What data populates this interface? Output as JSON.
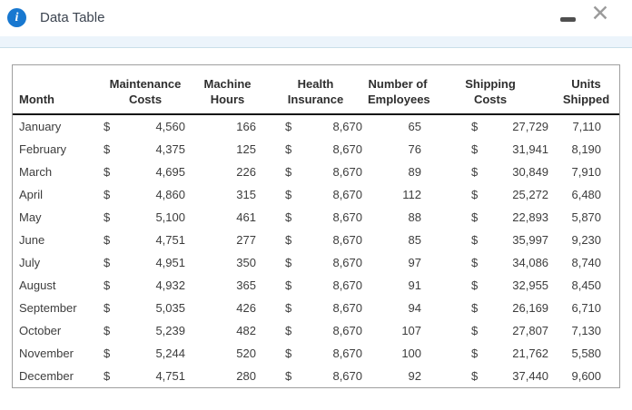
{
  "window": {
    "title": "Data Table",
    "icons": {
      "info_glyph": "i",
      "close_glyph": "✕"
    }
  },
  "colors": {
    "accent_blue": "#1878d0",
    "titlebar_strip": "#ecf4fb",
    "strip_border": "#c9dfe9",
    "table_border": "#9f9f9f",
    "header_rule": "#151515",
    "body_text": "#3d3d3d"
  },
  "table": {
    "currency_symbol": "$",
    "columns": {
      "month": {
        "line1": "",
        "line2": "Month"
      },
      "maintenance": {
        "line1": "Maintenance",
        "line2": "Costs"
      },
      "hours": {
        "line1": "Machine",
        "line2": "Hours"
      },
      "insurance": {
        "line1": "Health",
        "line2": "Insurance"
      },
      "employees": {
        "line1": "Number of",
        "line2": "Employees"
      },
      "shipping": {
        "line1": "Shipping",
        "line2": "Costs"
      },
      "units": {
        "line1": "Units",
        "line2": "Shipped"
      }
    },
    "rows": [
      {
        "month": "January",
        "maintenance_costs": "4,560",
        "machine_hours": "166",
        "health_insurance": "8,670",
        "employees": "65",
        "shipping_costs": "27,729",
        "units_shipped": "7,110"
      },
      {
        "month": "February",
        "maintenance_costs": "4,375",
        "machine_hours": "125",
        "health_insurance": "8,670",
        "employees": "76",
        "shipping_costs": "31,941",
        "units_shipped": "8,190"
      },
      {
        "month": "March",
        "maintenance_costs": "4,695",
        "machine_hours": "226",
        "health_insurance": "8,670",
        "employees": "89",
        "shipping_costs": "30,849",
        "units_shipped": "7,910"
      },
      {
        "month": "April",
        "maintenance_costs": "4,860",
        "machine_hours": "315",
        "health_insurance": "8,670",
        "employees": "112",
        "shipping_costs": "25,272",
        "units_shipped": "6,480"
      },
      {
        "month": "May",
        "maintenance_costs": "5,100",
        "machine_hours": "461",
        "health_insurance": "8,670",
        "employees": "88",
        "shipping_costs": "22,893",
        "units_shipped": "5,870"
      },
      {
        "month": "June",
        "maintenance_costs": "4,751",
        "machine_hours": "277",
        "health_insurance": "8,670",
        "employees": "85",
        "shipping_costs": "35,997",
        "units_shipped": "9,230"
      },
      {
        "month": "July",
        "maintenance_costs": "4,951",
        "machine_hours": "350",
        "health_insurance": "8,670",
        "employees": "97",
        "shipping_costs": "34,086",
        "units_shipped": "8,740"
      },
      {
        "month": "August",
        "maintenance_costs": "4,932",
        "machine_hours": "365",
        "health_insurance": "8,670",
        "employees": "91",
        "shipping_costs": "32,955",
        "units_shipped": "8,450"
      },
      {
        "month": "September",
        "maintenance_costs": "5,035",
        "machine_hours": "426",
        "health_insurance": "8,670",
        "employees": "94",
        "shipping_costs": "26,169",
        "units_shipped": "6,710"
      },
      {
        "month": "October",
        "maintenance_costs": "5,239",
        "machine_hours": "482",
        "health_insurance": "8,670",
        "employees": "107",
        "shipping_costs": "27,807",
        "units_shipped": "7,130"
      },
      {
        "month": "November",
        "maintenance_costs": "5,244",
        "machine_hours": "520",
        "health_insurance": "8,670",
        "employees": "100",
        "shipping_costs": "21,762",
        "units_shipped": "5,580"
      },
      {
        "month": "December",
        "maintenance_costs": "4,751",
        "machine_hours": "280",
        "health_insurance": "8,670",
        "employees": "92",
        "shipping_costs": "37,440",
        "units_shipped": "9,600"
      }
    ]
  }
}
